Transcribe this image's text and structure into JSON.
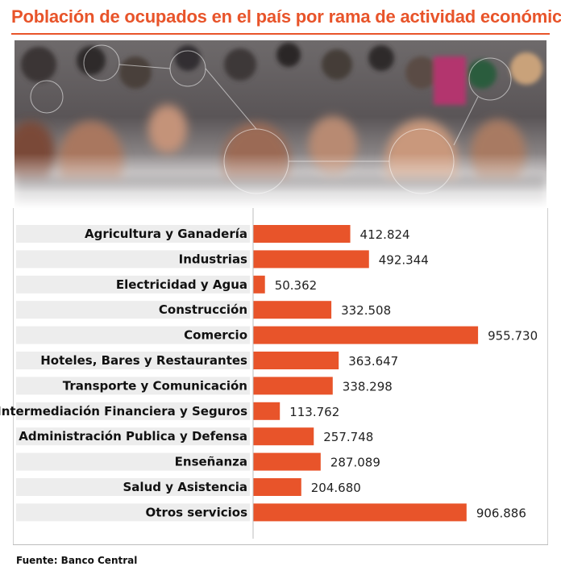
{
  "title": "Población de ocupados en el país por rama de actividad económica",
  "source": "Fuente: Banco Central",
  "colors": {
    "accent": "#e8542a",
    "bar": "#e8542a",
    "row_band": "#ededed",
    "axis": "#bdbdbd"
  },
  "chart_data": {
    "type": "bar",
    "orientation": "horizontal",
    "title": "Población de ocupados en el país por rama de actividad económica",
    "xlabel": "",
    "ylabel": "",
    "xlim": [
      0,
      1000000
    ],
    "grid": false,
    "categories": [
      "Agricultura y Ganadería",
      "Industrias",
      "Electricidad y Agua",
      "Construcción",
      "Comercio",
      "Hoteles, Bares y Restaurantes",
      "Transporte y Comunicación",
      "Intermediación Financiera y Seguros",
      "Administración Publica y Defensa",
      "Enseñanza",
      "Salud y Asistencia",
      "Otros servicios"
    ],
    "values": [
      412824,
      492344,
      50362,
      332508,
      955730,
      363647,
      338298,
      113762,
      257748,
      287089,
      204680,
      906886
    ],
    "value_labels": [
      "412.824",
      "492.344",
      "50.362",
      "332.508",
      "955.730",
      "363.647",
      "338.298",
      "113.762",
      "257.748",
      "287.089",
      "204.680",
      "906.886"
    ]
  }
}
